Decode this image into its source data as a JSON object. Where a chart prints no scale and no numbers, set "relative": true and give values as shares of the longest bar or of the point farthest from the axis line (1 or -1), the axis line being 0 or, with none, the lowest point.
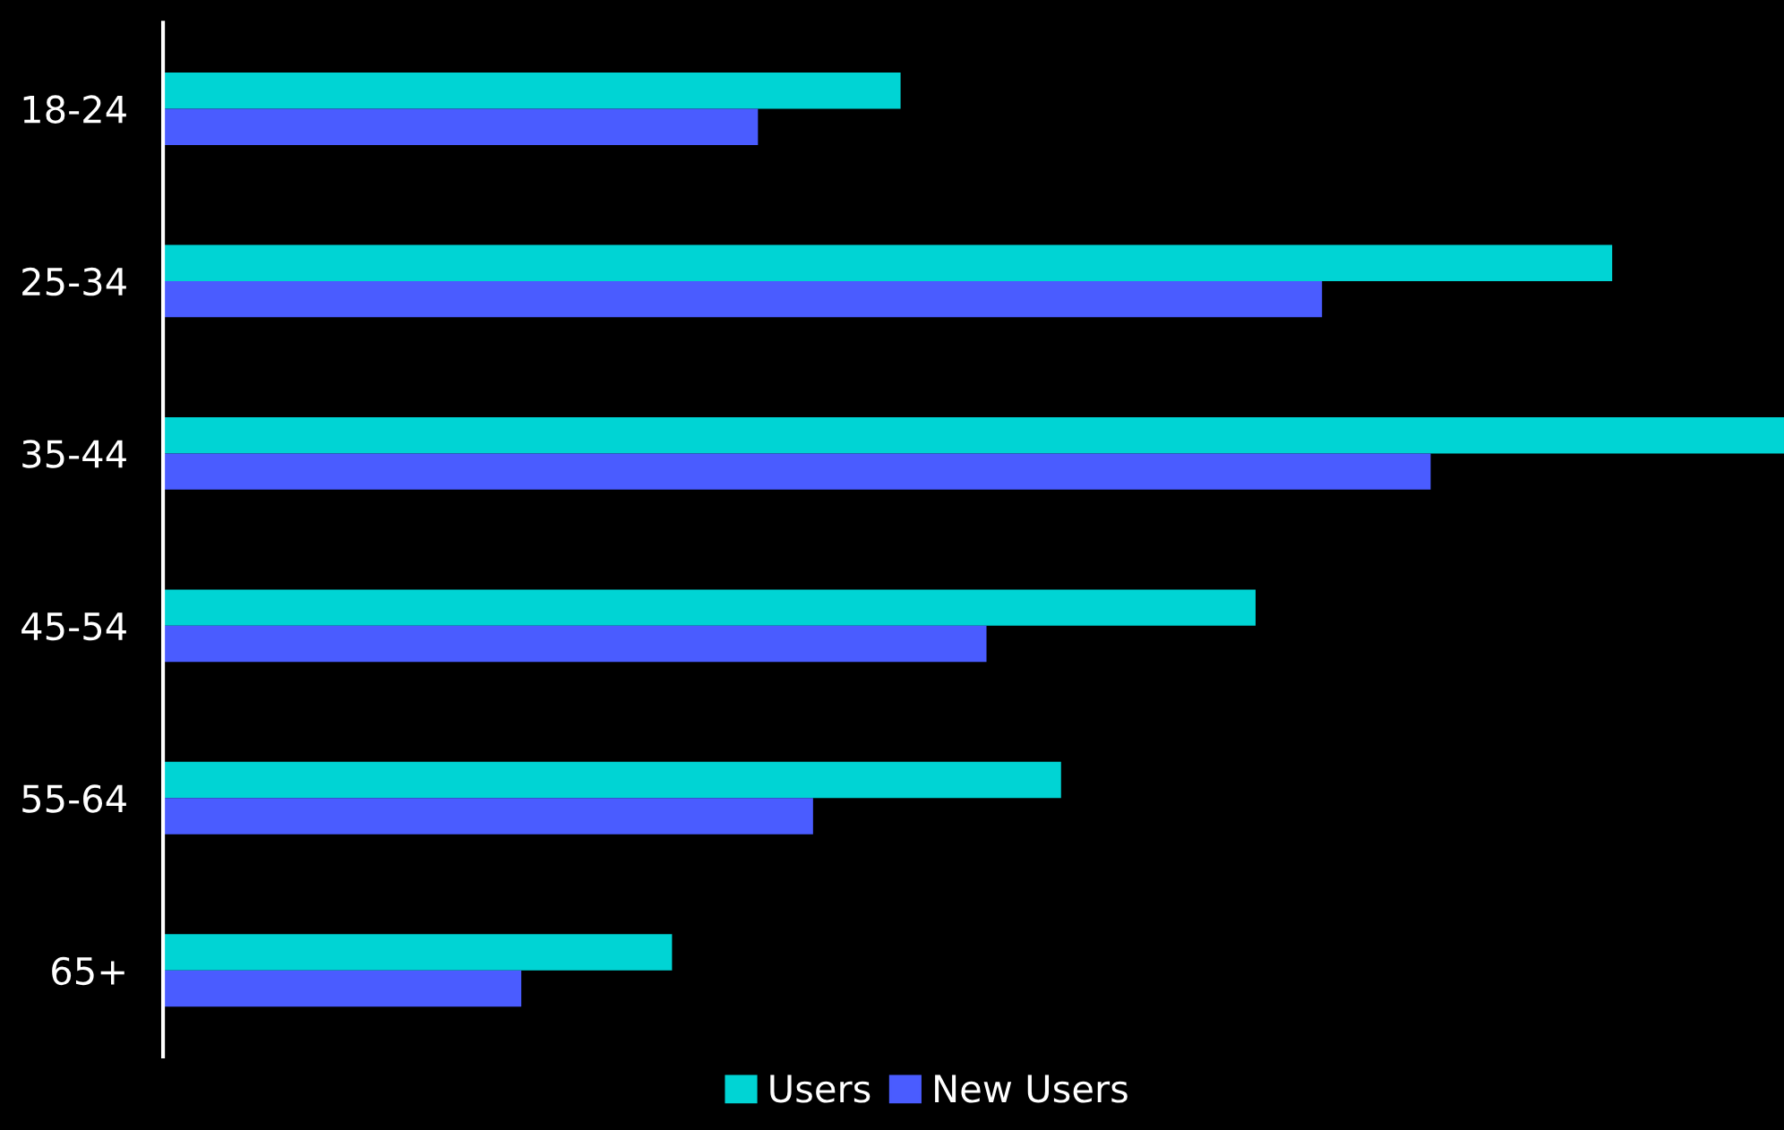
{
  "chart_data": {
    "type": "bar",
    "orientation": "horizontal",
    "relative": true,
    "categories": [
      "18-24",
      "25-34",
      "35-44",
      "45-54",
      "55-64",
      "65+"
    ],
    "series": [
      {
        "name": "Users",
        "color": "#00d4d4",
        "values": [
          0.455,
          0.894,
          1,
          0.674,
          0.554,
          0.314
        ]
      },
      {
        "name": "New Users",
        "color": "#4a5cff",
        "values": [
          0.367,
          0.715,
          0.782,
          0.508,
          0.401,
          0.221
        ]
      }
    ],
    "legend": "bottom",
    "grid": false
  }
}
